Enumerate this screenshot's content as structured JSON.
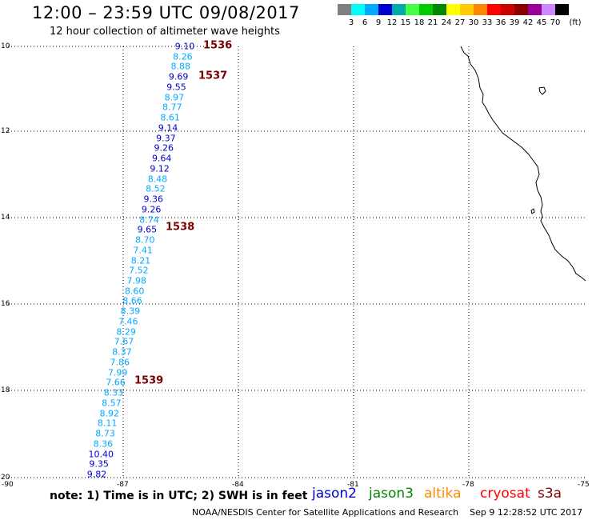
{
  "header": {
    "title": "12:00 – 23:59 UTC 09/08/2017",
    "subtitle": "12 hour collection of altimeter wave heights"
  },
  "scale": {
    "unit": "(ft)",
    "colors": [
      "#808080",
      "#00ffff",
      "#00aaff",
      "#0000cc",
      "#00aaaa",
      "#44ff44",
      "#00cc00",
      "#008800",
      "#ffff00",
      "#ffcc00",
      "#ff8800",
      "#ff0000",
      "#cc0000",
      "#880000",
      "#990099",
      "#cc88ff",
      "#000000"
    ],
    "labels": [
      "3",
      "6",
      "9",
      "12",
      "15",
      "18",
      "21",
      "24",
      "27",
      "30",
      "33",
      "36",
      "39",
      "42",
      "45",
      "70"
    ]
  },
  "axes": {
    "y_labels": [
      "10",
      "12",
      "14",
      "16",
      "18",
      "20"
    ],
    "x_labels": [
      "-90",
      "-87",
      "-84",
      "-81",
      "-78",
      "-75"
    ]
  },
  "observations": [
    {
      "v": "9.10",
      "c": "#0000cc"
    },
    {
      "v": "8.26",
      "c": "#00aaff"
    },
    {
      "v": "8.88",
      "c": "#00aaff"
    },
    {
      "v": "9.69",
      "c": "#0000cc"
    },
    {
      "v": "9.55",
      "c": "#0000cc"
    },
    {
      "v": "8.97",
      "c": "#00aaff"
    },
    {
      "v": "8.77",
      "c": "#00aaff"
    },
    {
      "v": "8.61",
      "c": "#00aaff"
    },
    {
      "v": "9.14",
      "c": "#0000cc"
    },
    {
      "v": "9.37",
      "c": "#0000cc"
    },
    {
      "v": "9.26",
      "c": "#0000cc"
    },
    {
      "v": "9.64",
      "c": "#0000cc"
    },
    {
      "v": "9.12",
      "c": "#0000cc"
    },
    {
      "v": "8.48",
      "c": "#00aaff"
    },
    {
      "v": "8.52",
      "c": "#00aaff"
    },
    {
      "v": "9.36",
      "c": "#0000cc"
    },
    {
      "v": "9.26",
      "c": "#0000cc"
    },
    {
      "v": "8.74",
      "c": "#00aaff"
    },
    {
      "v": "9.65",
      "c": "#0000cc"
    },
    {
      "v": "8.70",
      "c": "#00aaff"
    },
    {
      "v": "7.41",
      "c": "#00aaff"
    },
    {
      "v": "8.21",
      "c": "#00aaff"
    },
    {
      "v": "7.52",
      "c": "#00aaff"
    },
    {
      "v": "7.98",
      "c": "#00aaff"
    },
    {
      "v": "8.60",
      "c": "#00aaff"
    },
    {
      "v": "8.66",
      "c": "#00aaff"
    },
    {
      "v": "8.39",
      "c": "#00aaff"
    },
    {
      "v": "7.46",
      "c": "#00aaff"
    },
    {
      "v": "8.29",
      "c": "#00aaff"
    },
    {
      "v": "7.67",
      "c": "#00aaff"
    },
    {
      "v": "8.37",
      "c": "#00aaff"
    },
    {
      "v": "7.86",
      "c": "#00aaff"
    },
    {
      "v": "7.99",
      "c": "#00aaff"
    },
    {
      "v": "7.66",
      "c": "#00aaff"
    },
    {
      "v": "8.33",
      "c": "#00aaff"
    },
    {
      "v": "8.57",
      "c": "#00aaff"
    },
    {
      "v": "8.92",
      "c": "#00aaff"
    },
    {
      "v": "8.11",
      "c": "#00aaff"
    },
    {
      "v": "8.73",
      "c": "#00aaff"
    },
    {
      "v": "8.36",
      "c": "#00aaff"
    },
    {
      "v": "10.40",
      "c": "#0000cc"
    },
    {
      "v": "9.35",
      "c": "#0000cc"
    },
    {
      "v": "9.82",
      "c": "#0000cc"
    }
  ],
  "pass_labels": [
    "1536",
    "1537",
    "1538",
    "1539"
  ],
  "note": "note: 1) Time is in UTC; 2) SWH is in feet",
  "satellites": [
    {
      "name": "jason2",
      "color": "#0000cc"
    },
    {
      "name": "jason3",
      "color": "#008800"
    },
    {
      "name": "altika",
      "color": "#ff8800"
    },
    {
      "name": "cryosat",
      "color": "#ff0000"
    },
    {
      "name": "s3a",
      "color": "#880000"
    }
  ],
  "footer": {
    "credit": "NOAA/NESDIS Center for Satellite Applications and Research",
    "timestamp": "Sep  9 12:28:52 UTC 2017"
  }
}
